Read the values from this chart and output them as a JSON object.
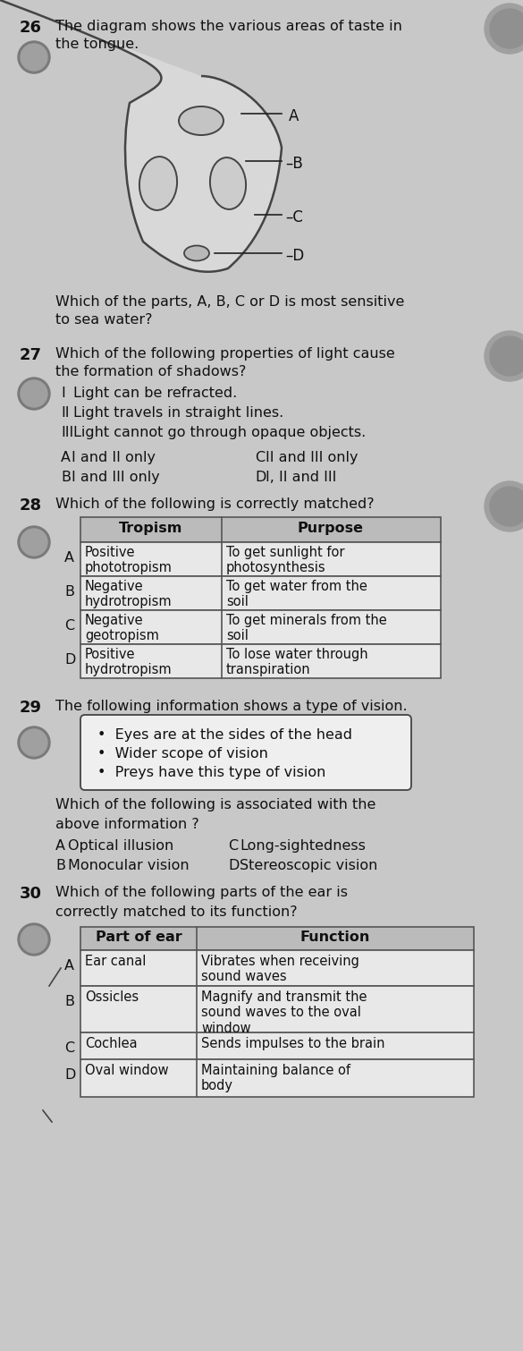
{
  "bg_color": "#c8c8c8",
  "text_color": "#1a1a1a",
  "q26_num": "26",
  "q26_text1": "The diagram shows the various areas of taste in",
  "q26_text2": "the tongue.",
  "q27_num": "27",
  "q27_text1": "Which of the following properties of light cause",
  "q27_text2": "the formation of shadows?",
  "q27_i": "Light can be refracted.",
  "q27_ii": "Light travels in straight lines.",
  "q27_iii": "Light cannot go through opaque objects.",
  "q27_a": "I and II only",
  "q27_c": "II and III only",
  "q27_b": "I and III only",
  "q27_d": "I, II and III",
  "q28_num": "28",
  "q28_text": "Which of the following is correctly matched?",
  "q28_col1": "Tropism",
  "q28_col2": "Purpose",
  "q28_rows": [
    [
      "A",
      "Positive\nphototropism",
      "To get sunlight for\nphotosynthesis"
    ],
    [
      "B",
      "Negative\nhydrotropism",
      "To get water from the\nsoil"
    ],
    [
      "C",
      "Negative\ngeotropism",
      "To get minerals from the\nsoil"
    ],
    [
      "D",
      "Positive\nhydrotropism",
      "To lose water through\ntranspiration"
    ]
  ],
  "q29_num": "29",
  "q29_text": "The following information shows a type of vision.",
  "q29_bullets": [
    "Eyes are at the sides of the head",
    "Wider scope of vision",
    "Preys have this type of vision"
  ],
  "q29_sub1": "Which of the following is associated with the",
  "q29_sub2": "above information ?",
  "q29_a": "Optical illusion",
  "q29_c": "Long-sightedness",
  "q29_b": "Monocular vision",
  "q29_d": "Stereoscopic vision",
  "q30_num": "30",
  "q30_text1": "Which of the following parts of the ear is",
  "q30_text2": "correctly matched to its function?",
  "q30_col1": "Part of ear",
  "q30_col2": "Function",
  "q30_rows": [
    [
      "A",
      "Ear canal",
      "Vibrates when receiving\nsound waves"
    ],
    [
      "B",
      "Ossicles",
      "Magnify and transmit the\nsound waves to the oval\nwindow"
    ],
    [
      "C",
      "Cochlea",
      "Sends impulses to the brain"
    ],
    [
      "D",
      "Oval window",
      "Maintaining balance of\nbody"
    ]
  ],
  "badge_outer": "#7a7a7a",
  "badge_inner": "#a0a0a0",
  "table_header_bg": "#bbbbbb",
  "table_row_bg": "#e8e8e8",
  "table_border": "#555555"
}
